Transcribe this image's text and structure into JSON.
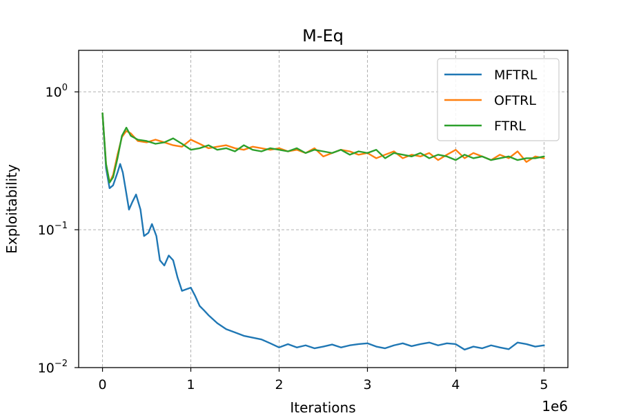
{
  "chart_data": {
    "type": "line",
    "title": "M-Eq",
    "xlabel": "Iterations",
    "ylabel": "Exploitability",
    "x_offset_label": "1e6",
    "xlim": [
      -0.27,
      5.27
    ],
    "ylim": [
      0.01,
      2.0
    ],
    "yscale": "log",
    "grid": true,
    "legend_position": "top-right",
    "x_ticks": [
      {
        "value": 0,
        "label": "0"
      },
      {
        "value": 1,
        "label": "1"
      },
      {
        "value": 2,
        "label": "2"
      },
      {
        "value": 3,
        "label": "3"
      },
      {
        "value": 4,
        "label": "4"
      },
      {
        "value": 5,
        "label": "5"
      }
    ],
    "y_ticks": [
      {
        "value": 1,
        "base": "10",
        "exp": "0"
      },
      {
        "value": 0.1,
        "base": "10",
        "exp": "−1"
      },
      {
        "value": 0.01,
        "base": "10",
        "exp": "−2"
      }
    ],
    "series": [
      {
        "name": "MFTRL",
        "color": "#1f77b4",
        "x": [
          0,
          0.04,
          0.08,
          0.12,
          0.17,
          0.2,
          0.23,
          0.26,
          0.3,
          0.34,
          0.38,
          0.43,
          0.47,
          0.52,
          0.56,
          0.61,
          0.65,
          0.7,
          0.75,
          0.8,
          0.85,
          0.9,
          0.95,
          1.0,
          1.05,
          1.1,
          1.15,
          1.2,
          1.3,
          1.4,
          1.5,
          1.6,
          1.7,
          1.8,
          1.9,
          2.0,
          2.1,
          2.2,
          2.3,
          2.4,
          2.5,
          2.6,
          2.7,
          2.8,
          2.9,
          3.0,
          3.1,
          3.2,
          3.3,
          3.4,
          3.5,
          3.6,
          3.7,
          3.8,
          3.9,
          4.0,
          4.1,
          4.2,
          4.3,
          4.4,
          4.5,
          4.6,
          4.7,
          4.8,
          4.9,
          5.0
        ],
        "values": [
          0.7,
          0.28,
          0.2,
          0.21,
          0.26,
          0.3,
          0.26,
          0.2,
          0.14,
          0.16,
          0.18,
          0.14,
          0.09,
          0.095,
          0.11,
          0.09,
          0.06,
          0.055,
          0.065,
          0.06,
          0.045,
          0.036,
          0.037,
          0.038,
          0.033,
          0.028,
          0.026,
          0.024,
          0.021,
          0.019,
          0.018,
          0.017,
          0.0165,
          0.016,
          0.015,
          0.014,
          0.0148,
          0.014,
          0.0145,
          0.0138,
          0.0142,
          0.0147,
          0.014,
          0.0145,
          0.0148,
          0.015,
          0.0142,
          0.0138,
          0.0145,
          0.015,
          0.0143,
          0.0148,
          0.0152,
          0.0145,
          0.015,
          0.0148,
          0.0135,
          0.0142,
          0.0138,
          0.0145,
          0.014,
          0.0136,
          0.0152,
          0.0148,
          0.0142,
          0.0145
        ]
      },
      {
        "name": "OFTRL",
        "color": "#ff7f0e",
        "x": [
          0,
          0.04,
          0.08,
          0.12,
          0.17,
          0.22,
          0.27,
          0.32,
          0.4,
          0.5,
          0.6,
          0.7,
          0.8,
          0.9,
          1.0,
          1.1,
          1.2,
          1.3,
          1.4,
          1.5,
          1.6,
          1.7,
          1.8,
          1.9,
          2.0,
          2.1,
          2.2,
          2.3,
          2.4,
          2.5,
          2.6,
          2.7,
          2.8,
          2.9,
          3.0,
          3.1,
          3.2,
          3.3,
          3.4,
          3.5,
          3.6,
          3.7,
          3.8,
          3.9,
          4.0,
          4.1,
          4.2,
          4.3,
          4.4,
          4.5,
          4.6,
          4.7,
          4.8,
          4.9,
          5.0
        ],
        "values": [
          0.7,
          0.3,
          0.22,
          0.25,
          0.35,
          0.47,
          0.52,
          0.5,
          0.44,
          0.43,
          0.45,
          0.43,
          0.41,
          0.4,
          0.45,
          0.42,
          0.39,
          0.4,
          0.41,
          0.39,
          0.38,
          0.4,
          0.39,
          0.38,
          0.39,
          0.37,
          0.38,
          0.36,
          0.39,
          0.34,
          0.36,
          0.38,
          0.37,
          0.35,
          0.36,
          0.33,
          0.35,
          0.37,
          0.33,
          0.35,
          0.34,
          0.36,
          0.32,
          0.35,
          0.38,
          0.33,
          0.36,
          0.34,
          0.32,
          0.35,
          0.33,
          0.37,
          0.31,
          0.34,
          0.33
        ]
      },
      {
        "name": "FTRL",
        "color": "#2ca02c",
        "x": [
          0,
          0.04,
          0.08,
          0.12,
          0.17,
          0.22,
          0.27,
          0.32,
          0.4,
          0.5,
          0.6,
          0.7,
          0.8,
          0.9,
          1.0,
          1.1,
          1.2,
          1.3,
          1.4,
          1.5,
          1.6,
          1.7,
          1.8,
          1.9,
          2.0,
          2.1,
          2.2,
          2.3,
          2.4,
          2.5,
          2.6,
          2.7,
          2.8,
          2.9,
          3.0,
          3.1,
          3.2,
          3.3,
          3.4,
          3.5,
          3.6,
          3.7,
          3.8,
          3.9,
          4.0,
          4.1,
          4.2,
          4.3,
          4.4,
          4.5,
          4.6,
          4.7,
          4.8,
          4.9,
          5.0
        ],
        "values": [
          0.7,
          0.3,
          0.22,
          0.24,
          0.33,
          0.48,
          0.55,
          0.48,
          0.45,
          0.44,
          0.42,
          0.43,
          0.46,
          0.42,
          0.38,
          0.39,
          0.41,
          0.38,
          0.39,
          0.37,
          0.41,
          0.38,
          0.37,
          0.39,
          0.38,
          0.37,
          0.39,
          0.36,
          0.38,
          0.37,
          0.36,
          0.38,
          0.35,
          0.37,
          0.36,
          0.38,
          0.33,
          0.36,
          0.35,
          0.34,
          0.36,
          0.33,
          0.35,
          0.34,
          0.32,
          0.35,
          0.33,
          0.34,
          0.32,
          0.33,
          0.34,
          0.32,
          0.33,
          0.33,
          0.34
        ]
      }
    ]
  }
}
